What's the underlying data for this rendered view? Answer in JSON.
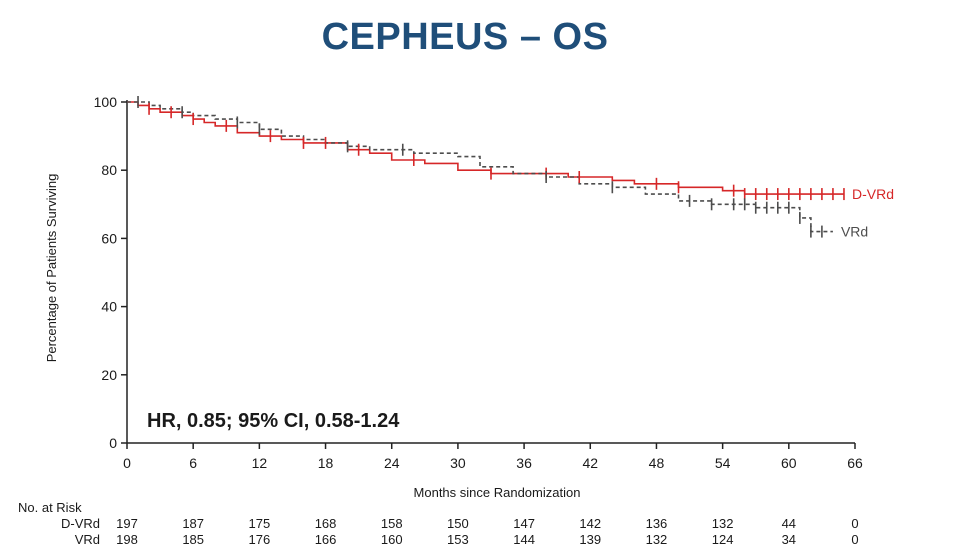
{
  "title": "CEPHEUS – OS",
  "chart_data": {
    "type": "line",
    "subtype": "kaplan-meier",
    "title": "CEPHEUS – OS",
    "xlabel": "Months since Randomization",
    "ylabel": "Percentage of Patients Surviving",
    "xlim": [
      0,
      66
    ],
    "ylim": [
      0,
      100
    ],
    "xticks": [
      0,
      6,
      12,
      18,
      24,
      30,
      36,
      42,
      48,
      54,
      60,
      66
    ],
    "yticks": [
      0,
      20,
      40,
      60,
      80,
      100
    ],
    "grid": false,
    "annotation": "HR, 0.85; 95% CI, 0.58-1.24",
    "series": [
      {
        "name": "D-VRd",
        "color": "#d62728",
        "line_style": "solid",
        "x": [
          0,
          1,
          2,
          3,
          4,
          5,
          6,
          7,
          8,
          10,
          12,
          14,
          16,
          18,
          20,
          22,
          24,
          27,
          30,
          33,
          36,
          40,
          44,
          46,
          50,
          54,
          56,
          58,
          60,
          62,
          64,
          65
        ],
        "y": [
          100,
          99,
          98,
          97,
          97,
          96,
          95,
          94,
          93,
          91,
          90,
          89,
          88,
          88,
          86,
          85,
          83,
          82,
          80,
          79,
          79,
          78,
          77,
          76,
          75,
          74,
          73,
          73,
          73,
          73,
          73,
          73
        ],
        "censor_x": [
          2,
          4,
          6,
          9,
          13,
          16,
          18,
          21,
          26,
          33,
          38,
          41,
          48,
          50,
          55,
          56,
          57,
          58,
          59,
          60,
          61,
          62,
          63,
          64,
          65
        ]
      },
      {
        "name": "VRd",
        "color": "#4d4d4d",
        "line_style": "dashed",
        "x": [
          0,
          1,
          2,
          3,
          5,
          6,
          8,
          10,
          12,
          14,
          16,
          18,
          20,
          22,
          24,
          26,
          28,
          30,
          32,
          35,
          38,
          41,
          44,
          47,
          50,
          53,
          55,
          57,
          59,
          61,
          62,
          64
        ],
        "y": [
          100,
          100,
          99,
          98,
          97,
          96,
          95,
          94,
          92,
          90,
          89,
          88,
          87,
          86,
          86,
          85,
          85,
          84,
          81,
          79,
          78,
          76,
          75,
          73,
          71,
          70,
          70,
          69,
          69,
          66,
          62,
          62
        ],
        "censor_x": [
          1,
          5,
          10,
          12,
          20,
          25,
          38,
          44,
          51,
          53,
          55,
          56,
          57,
          58,
          59,
          60,
          61,
          62,
          63
        ]
      }
    ],
    "number_at_risk": {
      "label": "No. at Risk",
      "times": [
        0,
        6,
        12,
        18,
        24,
        30,
        36,
        42,
        48,
        54,
        60,
        66
      ],
      "rows": [
        {
          "name": "D-VRd",
          "values": [
            "197",
            "187",
            "175",
            "168",
            "158",
            "150",
            "147",
            "142",
            "136",
            "132",
            "44",
            "0"
          ]
        },
        {
          "name": "VRd",
          "values": [
            "198",
            "185",
            "176",
            "166",
            "160",
            "153",
            "144",
            "139",
            "132",
            "124",
            "34",
            "0"
          ]
        }
      ]
    }
  }
}
